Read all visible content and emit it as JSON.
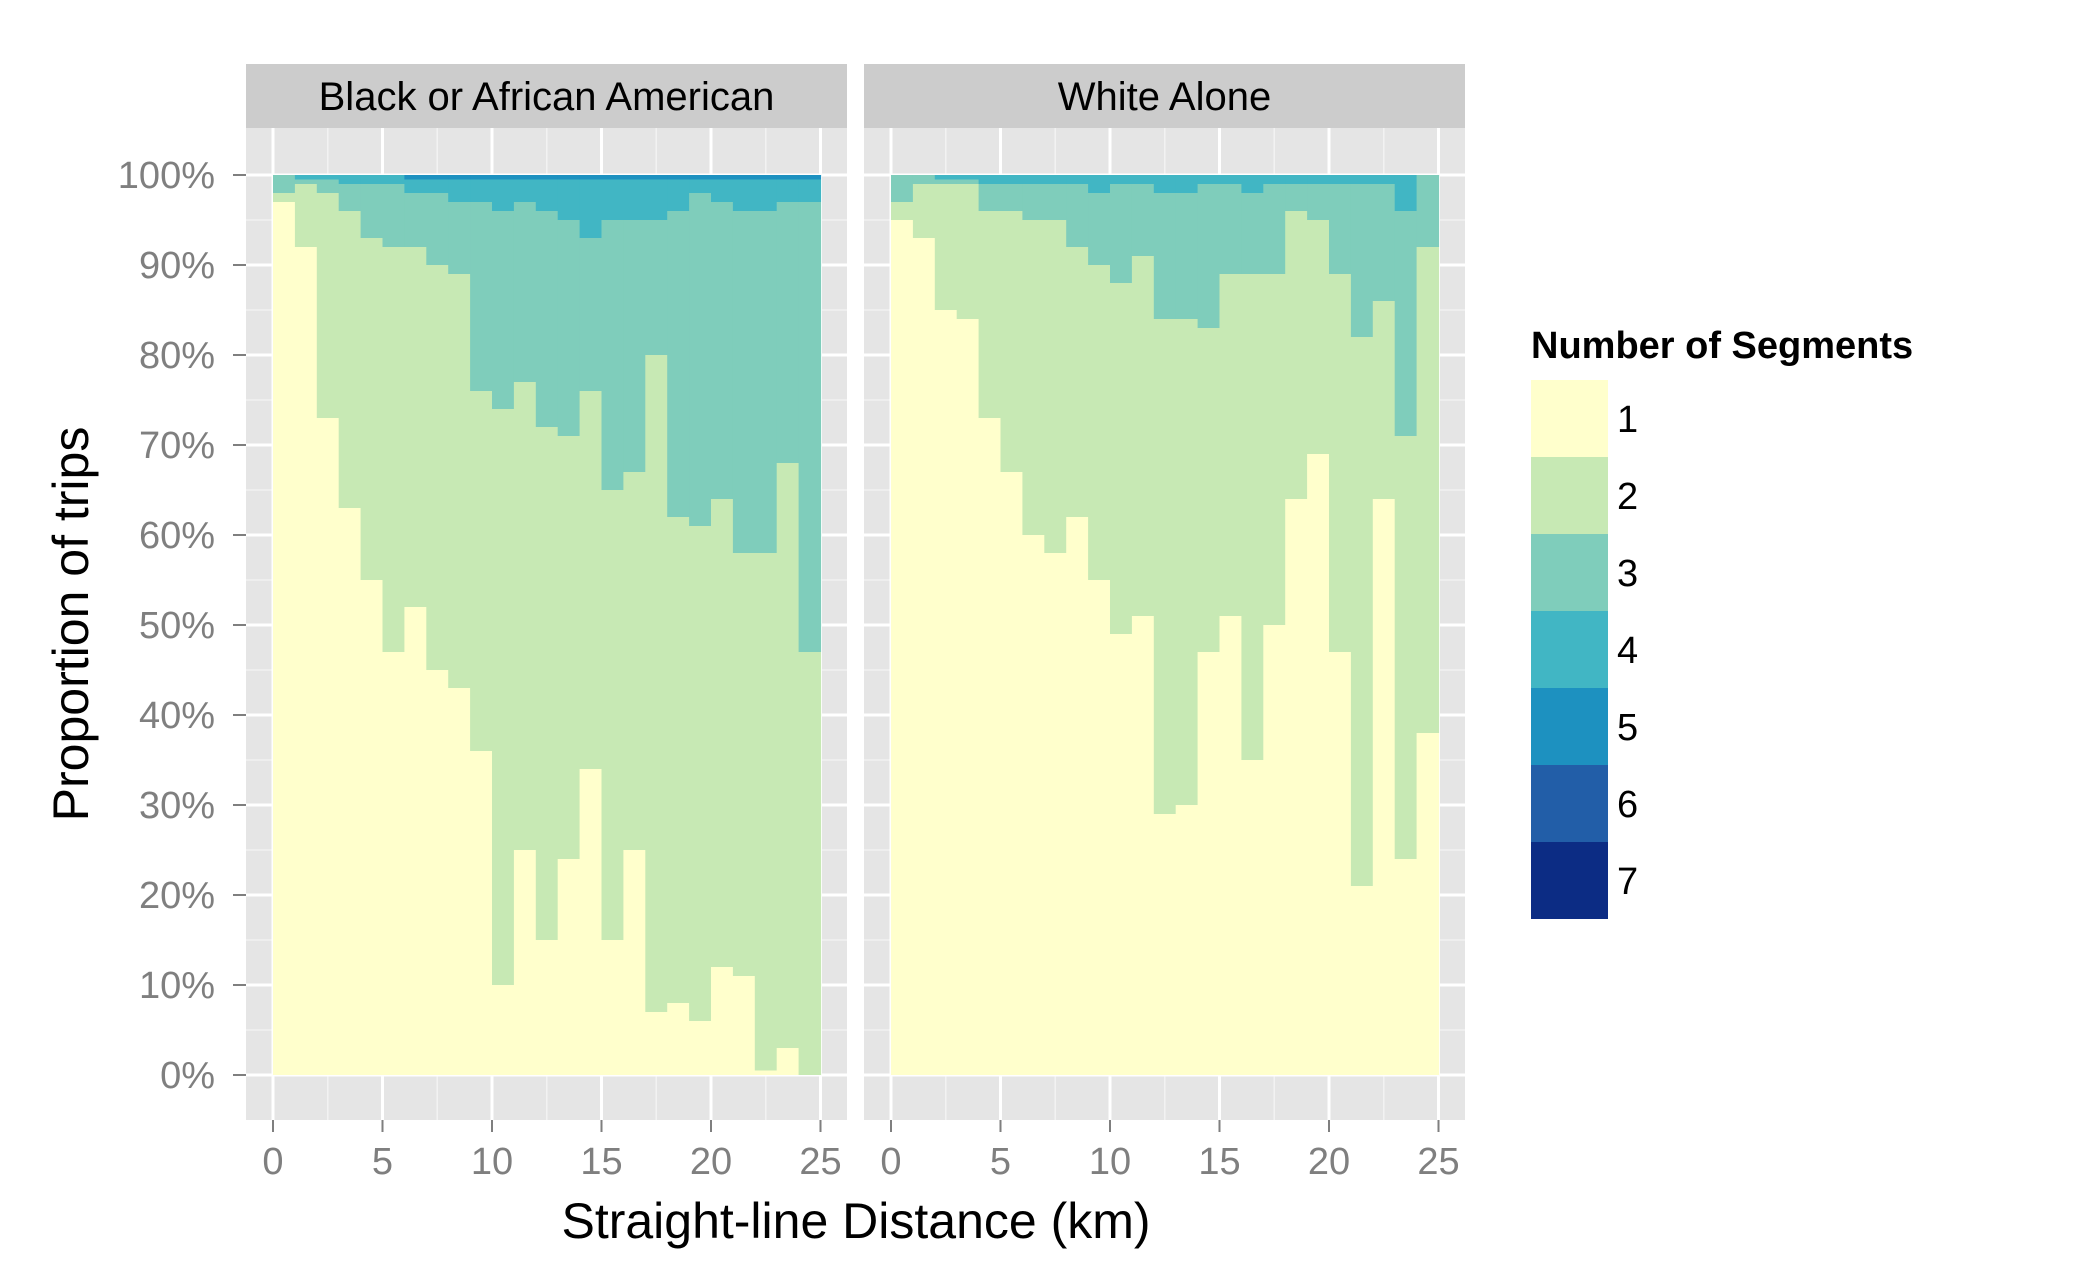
{
  "chart_data": {
    "type": "bar",
    "subtype": "stacked-proportion-histogram",
    "xlabel": "Straight-line Distance (km)",
    "ylabel": "Proportion of trips",
    "xlim": [
      0,
      25
    ],
    "ylim": [
      0,
      100
    ],
    "x_ticks": [
      "0",
      "5",
      "10",
      "15",
      "20",
      "25"
    ],
    "y_ticks": [
      "0%",
      "10%",
      "20%",
      "30%",
      "40%",
      "50%",
      "60%",
      "70%",
      "80%",
      "90%",
      "100%"
    ],
    "bin_width_km": 1,
    "bin_starts_km": [
      0,
      1,
      2,
      3,
      4,
      5,
      6,
      7,
      8,
      9,
      10,
      11,
      12,
      13,
      14,
      15,
      16,
      17,
      18,
      19,
      20,
      21,
      22,
      23,
      24
    ],
    "legend": {
      "title": "Number of Segments",
      "position": "right",
      "items": [
        {
          "label": "1",
          "color": "#FFFFCC"
        },
        {
          "label": "2",
          "color": "#C7E9B4"
        },
        {
          "label": "3",
          "color": "#7FCDBB"
        },
        {
          "label": "4",
          "color": "#41B6C4"
        },
        {
          "label": "5",
          "color": "#1D91C0"
        },
        {
          "label": "6",
          "color": "#225EA8"
        },
        {
          "label": "7",
          "color": "#0C2C84"
        }
      ]
    },
    "facets": [
      {
        "title": "Black or African American",
        "cumulative_tops": {
          "1": [
            97,
            92,
            73,
            63,
            55,
            47,
            52,
            45,
            43,
            36,
            10,
            25,
            15,
            24,
            34,
            15,
            25,
            7,
            8,
            6,
            12,
            11,
            0.5,
            3,
            0
          ],
          "2": [
            98,
            99,
            98,
            96,
            93,
            92,
            92,
            90,
            89,
            76,
            74,
            77,
            72,
            71,
            76,
            65,
            67,
            80,
            62,
            61,
            64,
            58,
            58,
            68,
            47
          ],
          "3": [
            100,
            99.5,
            99.5,
            99,
            99,
            99,
            98,
            98,
            97,
            97,
            96,
            97,
            96,
            95,
            93,
            95,
            95,
            95,
            96,
            98,
            97,
            96,
            96,
            97,
            97
          ],
          "4": [
            100,
            100,
            100,
            100,
            100,
            100,
            99.5,
            99.5,
            99.5,
            99.5,
            99.5,
            99.5,
            99.5,
            99.5,
            99.5,
            99.5,
            99.5,
            99.5,
            99.5,
            99.5,
            99.5,
            99.5,
            99.5,
            99.5,
            99.5
          ],
          "5": [
            100,
            100,
            100,
            100,
            100,
            100,
            100,
            100,
            100,
            100,
            100,
            100,
            100,
            100,
            100,
            100,
            100,
            100,
            100,
            100,
            100,
            100,
            100,
            100,
            100
          ],
          "6": [
            100,
            100,
            100,
            100,
            100,
            100,
            100,
            100,
            100,
            100,
            100,
            100,
            100,
            100,
            100,
            100,
            100,
            100,
            100,
            100,
            100,
            100,
            100,
            100,
            100
          ],
          "7": [
            100,
            100,
            100,
            100,
            100,
            100,
            100,
            100,
            100,
            100,
            100,
            100,
            100,
            100,
            100,
            100,
            100,
            100,
            100,
            100,
            100,
            100,
            100,
            100,
            100
          ]
        }
      },
      {
        "title": "White Alone",
        "cumulative_tops": {
          "1": [
            95,
            93,
            85,
            84,
            73,
            67,
            60,
            58,
            62,
            55,
            49,
            51,
            29,
            30,
            47,
            51,
            35,
            50,
            64,
            69,
            47,
            21,
            64,
            24,
            38
          ],
          "2": [
            97,
            99,
            99,
            99,
            96,
            96,
            95,
            95,
            92,
            90,
            88,
            91,
            84,
            84,
            83,
            89,
            89,
            89,
            96,
            95,
            89,
            82,
            86,
            71,
            92
          ],
          "3": [
            100,
            100,
            99.5,
            99.5,
            99,
            99,
            99,
            99,
            99,
            98,
            99,
            99,
            98,
            98,
            99,
            99,
            98,
            99,
            99,
            99,
            99,
            99,
            99,
            96,
            100
          ],
          "4": [
            100,
            100,
            100,
            100,
            100,
            100,
            100,
            100,
            100,
            100,
            100,
            100,
            100,
            100,
            100,
            100,
            100,
            100,
            100,
            100,
            100,
            100,
            100,
            100,
            100
          ],
          "5": [
            100,
            100,
            100,
            100,
            100,
            100,
            100,
            100,
            100,
            100,
            100,
            100,
            100,
            100,
            100,
            100,
            100,
            100,
            100,
            100,
            100,
            100,
            100,
            100,
            100
          ],
          "6": [
            100,
            100,
            100,
            100,
            100,
            100,
            100,
            100,
            100,
            100,
            100,
            100,
            100,
            100,
            100,
            100,
            100,
            100,
            100,
            100,
            100,
            100,
            100,
            100,
            100
          ],
          "7": [
            100,
            100,
            100,
            100,
            100,
            100,
            100,
            100,
            100,
            100,
            100,
            100,
            100,
            100,
            100,
            100,
            100,
            100,
            100,
            100,
            100,
            100,
            100,
            100,
            100
          ]
        }
      }
    ],
    "background_color": "#E5E5E5",
    "strip_color": "#CCCCCC",
    "grid_color": "#FFFFFF"
  }
}
